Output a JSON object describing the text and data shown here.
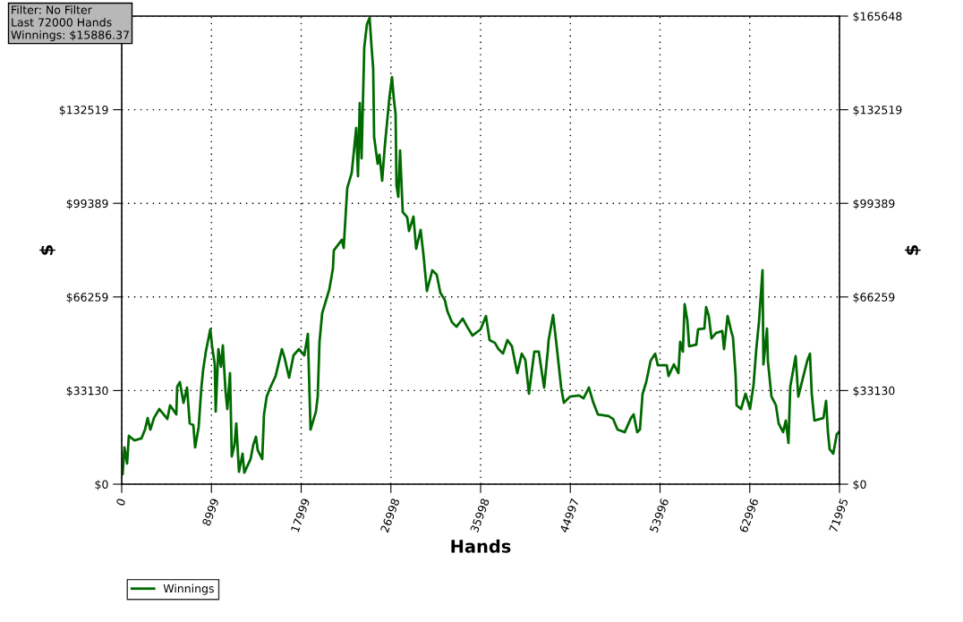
{
  "chart_data": {
    "type": "line",
    "annotations": [
      "Filter: No Filter\nLast 72000 Hands\nWinnings: $15886.37"
    ],
    "xlabel": "Hands",
    "ylabel": "$",
    "y2label": "$",
    "series": [
      {
        "name": "Winnings",
        "color": "#006a00",
        "axis": "y",
        "x": [
          0,
          90,
          269,
          539,
          718,
          1257,
          1975,
          2334,
          2603,
          2873,
          3232,
          3770,
          4578,
          4848,
          5476,
          5566,
          5835,
          6194,
          6553,
          6823,
          7182,
          7361,
          7720,
          7990,
          8169,
          8438,
          8887,
          9067,
          9336,
          9426,
          9695,
          9964,
          10144,
          10413,
          10593,
          10862,
          11042,
          11311,
          11491,
          11760,
          12119,
          12298,
          12927,
          13196,
          13466,
          13645,
          14094,
          14273,
          14543,
          14902,
          15440,
          16069,
          16338,
          16787,
          17236,
          17774,
          18313,
          18672,
          18762,
          18941,
          19480,
          19660,
          19839,
          20108,
          20826,
          21186,
          21275,
          22083,
          22263,
          22622,
          23071,
          23520,
          23699,
          23879,
          24058,
          24328,
          24597,
          24866,
          25046,
          25225,
          25315,
          25674,
          25854,
          26123,
          26392,
          26841,
          27111,
          27290,
          27470,
          27560,
          27739,
          27919,
          28188,
          28637,
          28816,
          29265,
          29534,
          29983,
          30252,
          30612,
          31150,
          31599,
          31958,
          32407,
          32676,
          33125,
          33574,
          34202,
          34651,
          35190,
          35998,
          36536,
          36895,
          37434,
          37793,
          38242,
          38691,
          39140,
          39678,
          40127,
          40486,
          40845,
          41384,
          41833,
          42102,
          42371,
          42731,
          42820,
          43269,
          43628,
          44077,
          44346,
          44975,
          45873,
          46321,
          46860,
          47309,
          47758,
          48835,
          49284,
          49733,
          50451,
          51079,
          51349,
          51708,
          51977,
          52246,
          52605,
          53054,
          53503,
          53772,
          54670,
          54849,
          55388,
          55837,
          56016,
          56286,
          56465,
          56734,
          56914,
          57632,
          57811,
          58440,
          58619,
          58888,
          59157,
          59606,
          60235,
          60414,
          60773,
          61132,
          61312,
          61581,
          61671,
          62120,
          62569,
          63018,
          63377,
          63647,
          63916,
          64275,
          64365,
          64724,
          64813,
          65172,
          65621,
          65891,
          66340,
          66609,
          66878,
          67058,
          67597,
          67866,
          68315,
          68764,
          69033,
          69213,
          69482,
          70380,
          70649,
          70829,
          71008,
          71367,
          71726,
          71995
        ],
        "values": [
          5100,
          3500,
          13000,
          7300,
          17100,
          15500,
          16200,
          19300,
          23400,
          19300,
          23400,
          26600,
          23100,
          27900,
          24700,
          34500,
          36100,
          28800,
          34200,
          21500,
          20900,
          13000,
          20300,
          34200,
          40500,
          46900,
          54800,
          48800,
          42400,
          25700,
          47800,
          41500,
          49100,
          32900,
          26600,
          39300,
          9800,
          13900,
          21500,
          4400,
          10800,
          4100,
          8900,
          13900,
          16800,
          12000,
          8900,
          24700,
          31000,
          34200,
          38300,
          47800,
          44700,
          37700,
          45600,
          47800,
          45600,
          53200,
          41500,
          19300,
          25700,
          31000,
          50400,
          60500,
          69000,
          76300,
          82700,
          86500,
          83600,
          104800,
          110200,
          126100,
          109000,
          134900,
          115300,
          154600,
          162800,
          165000,
          155500,
          147000,
          122900,
          113400,
          116600,
          107400,
          119700,
          136500,
          144100,
          136500,
          131100,
          105800,
          101700,
          118100,
          96300,
          94400,
          89600,
          94700,
          83300,
          90000,
          81700,
          68400,
          75700,
          74100,
          67800,
          65200,
          61100,
          57300,
          55700,
          58600,
          55700,
          52600,
          54800,
          59500,
          51000,
          50000,
          47800,
          46200,
          51000,
          48800,
          39300,
          46200,
          44000,
          32000,
          46900,
          46900,
          40500,
          34200,
          46900,
          51000,
          59900,
          48800,
          34200,
          28800,
          31000,
          31400,
          30400,
          34200,
          28800,
          24700,
          24100,
          23100,
          19300,
          18400,
          23400,
          24700,
          18400,
          19300,
          32000,
          36100,
          43700,
          46200,
          42100,
          42100,
          38300,
          42400,
          39300,
          50400,
          46900,
          63700,
          58000,
          48800,
          49400,
          54800,
          55100,
          62700,
          59500,
          51600,
          53500,
          54200,
          47800,
          59500,
          54200,
          51900,
          38300,
          27900,
          26600,
          32000,
          26600,
          35200,
          47800,
          57300,
          75700,
          42400,
          55100,
          43700,
          31000,
          27900,
          21500,
          18400,
          22500,
          14600,
          34500,
          45300,
          31000,
          37400,
          43700,
          46200,
          32000,
          22500,
          23400,
          29500,
          18700,
          12400,
          10800,
          17700,
          18700
        ]
      }
    ],
    "xlim": [
      0,
      71995
    ],
    "xticks": [
      0,
      8999,
      17999,
      26998,
      35998,
      44997,
      53996,
      62996,
      71995
    ],
    "ylim": [
      0,
      165648
    ],
    "yticks": [
      {
        "value": 0,
        "label": "$0"
      },
      {
        "value": 33130,
        "label": "$33130"
      },
      {
        "value": 66259,
        "label": "$66259"
      },
      {
        "value": 99389,
        "label": "$99389"
      },
      {
        "value": 132519,
        "label": "$132519"
      },
      {
        "value": 165648,
        "label": null
      }
    ],
    "y2lim": [
      0,
      165648
    ],
    "y2ticks": [
      {
        "value": 0,
        "label": "$0"
      },
      {
        "value": 33130,
        "label": "$33130"
      },
      {
        "value": 66259,
        "label": "$66259"
      },
      {
        "value": 99389,
        "label": "$99389"
      },
      {
        "value": 132519,
        "label": "$132519"
      },
      {
        "value": 165648,
        "label": "$165648"
      }
    ],
    "grid": true,
    "legend": "bottom left",
    "line_style": "solid",
    "marker": "none"
  }
}
